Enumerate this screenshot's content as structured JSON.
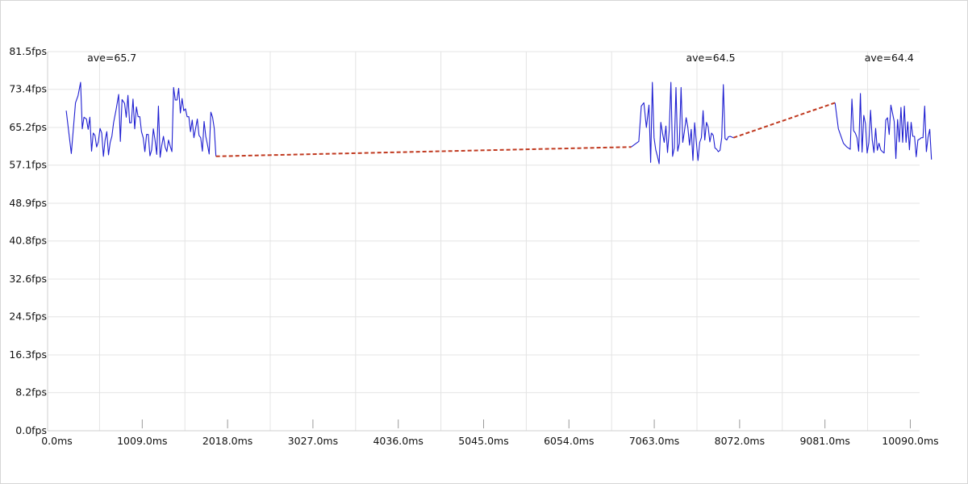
{
  "chart_data": {
    "type": "line",
    "xlim": [
      -110,
      10200
    ],
    "ylim": [
      0.0,
      81.5
    ],
    "grid": true,
    "x_ticks": [
      0,
      1009,
      2018,
      3027,
      4036,
      5045,
      6054,
      7063,
      8072,
      9081,
      10090
    ],
    "x_tick_labels": [
      "0.0ms",
      "1009.0ms",
      "2018.0ms",
      "3027.0ms",
      "4036.0ms",
      "5045.0ms",
      "6054.0ms",
      "7063.0ms",
      "8072.0ms",
      "9081.0ms",
      "10090.0ms"
    ],
    "y_ticks": [
      0.0,
      8.2,
      16.3,
      24.5,
      32.6,
      40.8,
      48.9,
      57.1,
      65.2,
      73.4,
      81.5
    ],
    "y_tick_labels": [
      "0.0fps",
      "8.2fps",
      "16.3fps",
      "24.5fps",
      "32.6fps",
      "40.8fps",
      "48.9fps",
      "57.1fps",
      "65.2fps",
      "73.4fps",
      "81.5fps"
    ],
    "annotations": [
      {
        "text": "ave=65.7",
        "x": 650,
        "y": 79.4
      },
      {
        "text": "ave=64.5",
        "x": 7730,
        "y": 79.4
      },
      {
        "text": "ave=64.4",
        "x": 9840,
        "y": 79.4
      }
    ],
    "series": [
      {
        "style": "solid",
        "color": "#1f1fd1",
        "points": [
          [
            110,
            68.8
          ],
          [
            170,
            59.6
          ],
          [
            220,
            70.5
          ],
          [
            250,
            72.0
          ],
          [
            280,
            74.9
          ],
          [
            300,
            64.9
          ],
          [
            320,
            67.4
          ],
          [
            350,
            67.0
          ],
          [
            370,
            64.8
          ],
          [
            390,
            67.4
          ],
          [
            410,
            60.1
          ],
          [
            430,
            64.0
          ],
          [
            450,
            63.5
          ],
          [
            470,
            61.0
          ],
          [
            490,
            62.1
          ],
          [
            510,
            65.0
          ],
          [
            530,
            64.0
          ],
          [
            550,
            59.0
          ],
          [
            570,
            62.5
          ],
          [
            590,
            64.3
          ],
          [
            610,
            59.3
          ],
          [
            630,
            62.0
          ],
          [
            650,
            63.3
          ],
          [
            670,
            66.2
          ],
          [
            700,
            69.0
          ],
          [
            730,
            72.3
          ],
          [
            750,
            62.2
          ],
          [
            770,
            71.2
          ],
          [
            800,
            70.4
          ],
          [
            820,
            67.4
          ],
          [
            840,
            72.1
          ],
          [
            860,
            66.2
          ],
          [
            880,
            66.2
          ],
          [
            900,
            71.3
          ],
          [
            920,
            64.9
          ],
          [
            940,
            69.6
          ],
          [
            960,
            67.5
          ],
          [
            980,
            67.5
          ],
          [
            1000,
            64.3
          ],
          [
            1020,
            63.0
          ],
          [
            1040,
            60.0
          ],
          [
            1060,
            63.7
          ],
          [
            1080,
            63.7
          ],
          [
            1100,
            59.1
          ],
          [
            1120,
            60.4
          ],
          [
            1140,
            64.9
          ],
          [
            1160,
            62.5
          ],
          [
            1180,
            59.4
          ],
          [
            1200,
            69.8
          ],
          [
            1220,
            58.8
          ],
          [
            1240,
            61.3
          ],
          [
            1260,
            63.3
          ],
          [
            1280,
            61.0
          ],
          [
            1300,
            60.0
          ],
          [
            1320,
            62.5
          ],
          [
            1340,
            61.2
          ],
          [
            1360,
            60.0
          ],
          [
            1380,
            73.8
          ],
          [
            1400,
            71.1
          ],
          [
            1420,
            71.1
          ],
          [
            1440,
            73.6
          ],
          [
            1460,
            68.3
          ],
          [
            1480,
            71.4
          ],
          [
            1500,
            68.8
          ],
          [
            1520,
            69.2
          ],
          [
            1540,
            67.5
          ],
          [
            1560,
            67.5
          ],
          [
            1580,
            64.3
          ],
          [
            1600,
            66.8
          ],
          [
            1620,
            63.0
          ],
          [
            1640,
            65.0
          ],
          [
            1660,
            67.0
          ],
          [
            1680,
            63.5
          ],
          [
            1700,
            63.0
          ],
          [
            1720,
            60.1
          ],
          [
            1740,
            66.5
          ],
          [
            1760,
            63.3
          ],
          [
            1780,
            61.5
          ],
          [
            1800,
            59.5
          ],
          [
            1820,
            68.5
          ],
          [
            1840,
            67.4
          ],
          [
            1860,
            65.0
          ],
          [
            1880,
            59.0
          ]
        ]
      },
      {
        "style": "dashed",
        "color": "#c0391f",
        "points": [
          [
            1880,
            59.0
          ],
          [
            6790,
            61.0
          ]
        ]
      },
      {
        "style": "solid",
        "color": "#1f1fd1",
        "points": [
          [
            6790,
            61.0
          ],
          [
            6850,
            61.8
          ],
          [
            6880,
            62.2
          ],
          [
            6910,
            69.8
          ],
          [
            6940,
            70.5
          ],
          [
            6970,
            65.2
          ],
          [
            7000,
            70.0
          ],
          [
            7020,
            57.7
          ],
          [
            7040,
            74.9
          ],
          [
            7060,
            63.0
          ],
          [
            7080,
            60.4
          ],
          [
            7100,
            59.0
          ],
          [
            7120,
            57.4
          ],
          [
            7140,
            66.3
          ],
          [
            7160,
            64.0
          ],
          [
            7180,
            62.0
          ],
          [
            7200,
            65.5
          ],
          [
            7220,
            59.8
          ],
          [
            7240,
            64.5
          ],
          [
            7260,
            74.9
          ],
          [
            7280,
            59.0
          ],
          [
            7300,
            60.8
          ],
          [
            7320,
            73.8
          ],
          [
            7340,
            60.1
          ],
          [
            7360,
            61.8
          ],
          [
            7380,
            73.8
          ],
          [
            7400,
            62.0
          ],
          [
            7420,
            64.4
          ],
          [
            7440,
            67.3
          ],
          [
            7460,
            65.2
          ],
          [
            7480,
            61.4
          ],
          [
            7500,
            64.8
          ],
          [
            7520,
            58.1
          ],
          [
            7540,
            66.2
          ],
          [
            7560,
            62.1
          ],
          [
            7580,
            58.1
          ],
          [
            7600,
            62.0
          ],
          [
            7620,
            63.0
          ],
          [
            7640,
            68.8
          ],
          [
            7660,
            62.5
          ],
          [
            7680,
            66.3
          ],
          [
            7700,
            65.3
          ],
          [
            7720,
            62.1
          ],
          [
            7740,
            64.0
          ],
          [
            7760,
            63.5
          ],
          [
            7780,
            60.8
          ],
          [
            7800,
            60.5
          ],
          [
            7820,
            60.0
          ],
          [
            7840,
            60.3
          ],
          [
            7860,
            63.0
          ],
          [
            7880,
            74.4
          ],
          [
            7900,
            62.8
          ],
          [
            7920,
            62.5
          ],
          [
            7940,
            63.2
          ],
          [
            7960,
            63.3
          ],
          [
            8000,
            63.0
          ]
        ]
      },
      {
        "style": "dashed",
        "color": "#c0391f",
        "points": [
          [
            8000,
            63.0
          ],
          [
            9200,
            70.5
          ]
        ]
      },
      {
        "style": "solid",
        "color": "#1f1fd1",
        "points": [
          [
            9200,
            70.5
          ],
          [
            9240,
            64.9
          ],
          [
            9300,
            61.8
          ],
          [
            9340,
            61.0
          ],
          [
            9380,
            60.5
          ],
          [
            9400,
            71.3
          ],
          [
            9420,
            64.5
          ],
          [
            9440,
            64.0
          ],
          [
            9460,
            63.0
          ],
          [
            9480,
            60.1
          ],
          [
            9500,
            72.5
          ],
          [
            9520,
            59.9
          ],
          [
            9540,
            67.8
          ],
          [
            9560,
            66.0
          ],
          [
            9580,
            59.7
          ],
          [
            9600,
            62.0
          ],
          [
            9620,
            68.9
          ],
          [
            9640,
            62.5
          ],
          [
            9660,
            59.8
          ],
          [
            9680,
            65.0
          ],
          [
            9700,
            60.3
          ],
          [
            9720,
            61.8
          ],
          [
            9740,
            60.4
          ],
          [
            9760,
            60.0
          ],
          [
            9780,
            59.7
          ],
          [
            9800,
            66.8
          ],
          [
            9820,
            67.3
          ],
          [
            9840,
            63.7
          ],
          [
            9860,
            70.0
          ],
          [
            9880,
            68.3
          ],
          [
            9900,
            66.5
          ],
          [
            9920,
            58.5
          ],
          [
            9940,
            66.9
          ],
          [
            9960,
            62.1
          ],
          [
            9980,
            69.5
          ],
          [
            10000,
            62.0
          ],
          [
            10020,
            69.8
          ],
          [
            10040,
            62.0
          ],
          [
            10060,
            66.4
          ],
          [
            10080,
            60.4
          ],
          [
            10100,
            66.3
          ],
          [
            10120,
            63.3
          ],
          [
            10140,
            63.3
          ],
          [
            10160,
            58.9
          ],
          [
            10180,
            62.5
          ],
          [
            10200,
            62.7
          ],
          [
            10220,
            63.0
          ],
          [
            10240,
            63.0
          ],
          [
            10260,
            69.8
          ],
          [
            10280,
            60.0
          ],
          [
            10300,
            63.1
          ],
          [
            10320,
            64.8
          ],
          [
            10340,
            58.3
          ]
        ]
      }
    ]
  }
}
